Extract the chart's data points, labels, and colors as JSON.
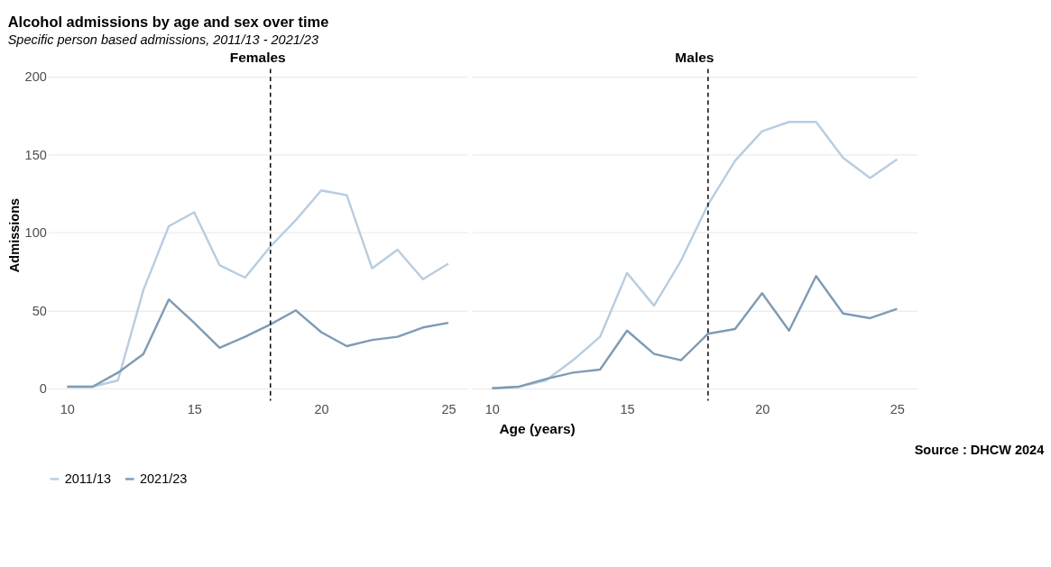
{
  "chart_data": [
    {
      "type": "line",
      "title": "Females",
      "xlabel": "Age (years)",
      "ylabel": "Admissions",
      "legend": "bottom",
      "grid": "y",
      "xlim": [
        9.25,
        25.75
      ],
      "ylim": [
        -8,
        205
      ],
      "xticks": [
        10,
        15,
        20,
        25
      ],
      "yticks": [
        0,
        50,
        100,
        150,
        200
      ],
      "x": [
        10,
        11,
        12,
        13,
        14,
        15,
        16,
        17,
        18,
        19,
        20,
        21,
        22,
        23,
        24,
        25
      ],
      "series": [
        {
          "name": "2011/13",
          "color": "#b9cde0",
          "values": [
            1,
            1,
            5,
            63,
            104,
            113,
            79,
            71,
            91,
            108,
            127,
            124,
            77,
            89,
            70,
            80
          ]
        },
        {
          "name": "2021/23",
          "color": "#7f9bb5",
          "values": [
            1,
            1,
            10,
            22,
            57,
            42,
            26,
            33,
            41,
            50,
            36,
            27,
            31,
            33,
            39,
            42
          ]
        }
      ],
      "ref_lines": [
        {
          "axis": "x",
          "value": 18,
          "color": "#000000",
          "line_style": "dashed"
        }
      ],
      "annotations": [
        "Alcohol admissions by age and sex over time",
        "Specific person based admissions, 2011/13 - 2021/23"
      ]
    },
    {
      "type": "line",
      "title": "Males",
      "tick_labels": "x",
      "grid": "y",
      "xlim": [
        9.25,
        25.75
      ],
      "ylim": [
        -8,
        205
      ],
      "xticks": [
        10,
        15,
        20,
        25
      ],
      "yticks": [
        0,
        50,
        100,
        150,
        200
      ],
      "x": [
        10,
        11,
        12,
        13,
        14,
        15,
        16,
        17,
        18,
        19,
        20,
        21,
        22,
        23,
        24,
        25
      ],
      "series": [
        {
          "name": "2011/13",
          "color": "#b9cde0",
          "values": [
            0,
            1,
            5,
            18,
            33,
            74,
            53,
            82,
            118,
            146,
            165,
            171,
            171,
            148,
            135,
            147
          ]
        },
        {
          "name": "2021/23",
          "color": "#7f9bb5",
          "values": [
            0,
            1,
            6,
            10,
            12,
            37,
            22,
            18,
            35,
            38,
            61,
            37,
            72,
            48,
            45,
            51
          ]
        }
      ],
      "ref_lines": [
        {
          "axis": "x",
          "value": 18,
          "color": "#000000",
          "line_style": "dashed"
        }
      ],
      "annotations": [
        "Source : DHCW 2024"
      ]
    }
  ]
}
